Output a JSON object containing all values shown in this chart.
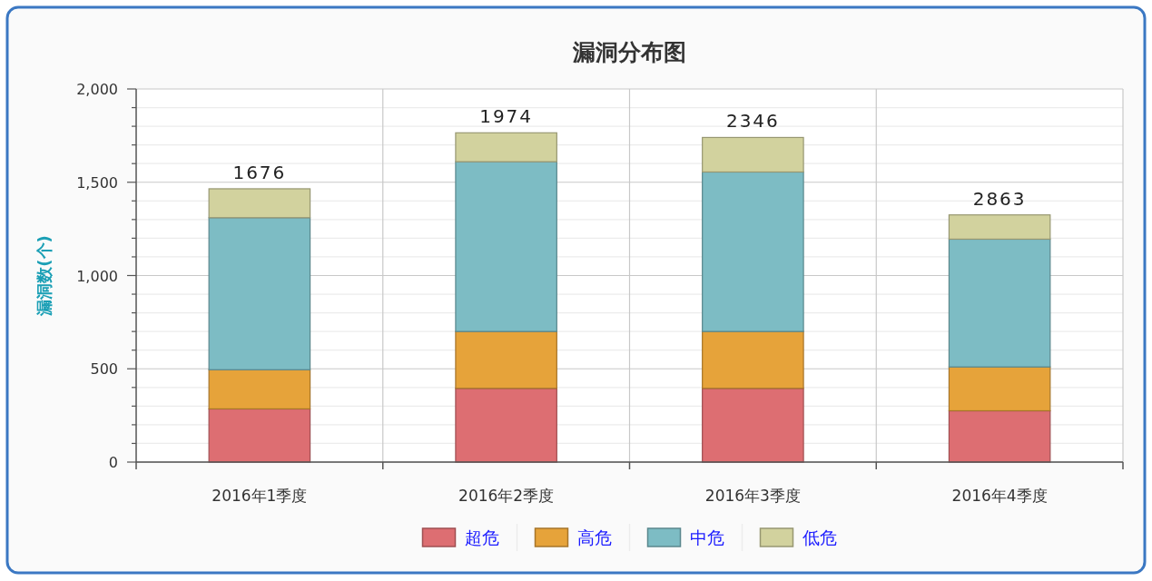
{
  "chart_data": {
    "type": "bar",
    "title": "漏洞分布图",
    "ylabel": "漏洞数(个)",
    "categories": [
      "2016年1季度",
      "2016年2季度",
      "2016年3季度",
      "2016年4季度"
    ],
    "stacked": true,
    "series": [
      {
        "name": "超危",
        "color": "#dd6e72",
        "values": [
          285,
          395,
          395,
          275
        ]
      },
      {
        "name": "高危",
        "color": "#e6a33a",
        "values": [
          210,
          305,
          305,
          235
        ]
      },
      {
        "name": "中危",
        "color": "#7dbcc4",
        "values": [
          815,
          910,
          855,
          685
        ]
      },
      {
        "name": "低危",
        "color": "#d2d29e",
        "values": [
          155,
          155,
          185,
          130
        ]
      }
    ],
    "annotations": [
      {
        "text": "1676",
        "x": "2016年1季度",
        "y": 1465
      },
      {
        "text": "1974",
        "x": "2016年2季度",
        "y": 1765
      },
      {
        "text": "2346",
        "x": "2016年3季度",
        "y": 1740
      },
      {
        "text": "2863",
        "x": "2016年4季度",
        "y": 1325
      }
    ],
    "ylim": [
      0,
      2000
    ],
    "yticks": [
      0,
      {
        "value": 100,
        "label": null
      },
      {
        "value": 200,
        "label": null
      },
      {
        "value": 300,
        "label": null
      },
      {
        "value": 400,
        "label": null
      },
      500,
      {
        "value": 600,
        "label": null
      },
      {
        "value": 700,
        "label": null
      },
      {
        "value": 800,
        "label": null
      },
      {
        "value": 900,
        "label": null
      },
      {
        "value": 1000,
        "label": "1,000"
      },
      {
        "value": 1100,
        "label": null
      },
      {
        "value": 1200,
        "label": null
      },
      {
        "value": 1300,
        "label": null
      },
      {
        "value": 1400,
        "label": null
      },
      {
        "value": 1500,
        "label": "1,500"
      },
      {
        "value": 1600,
        "label": null
      },
      {
        "value": 1700,
        "label": null
      },
      {
        "value": 1800,
        "label": null
      },
      {
        "value": 1900,
        "label": null
      },
      {
        "value": 2000,
        "label": "2,000"
      }
    ],
    "grid": true,
    "legend": "bottom"
  }
}
